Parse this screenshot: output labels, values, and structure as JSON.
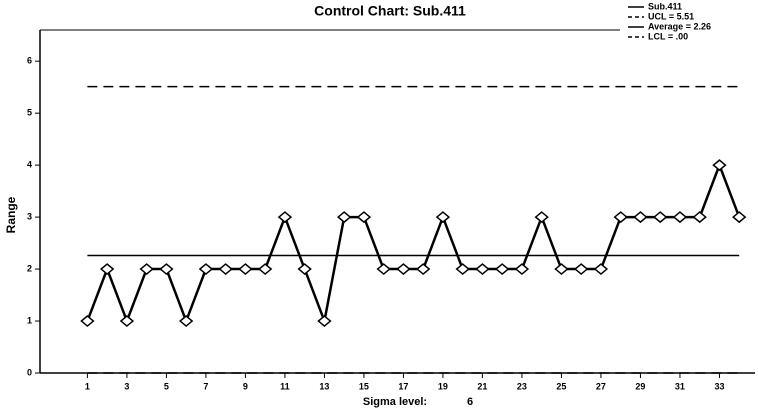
{
  "chart_data": {
    "type": "line",
    "title": "Control Chart: Sub.411",
    "ylabel": "Range",
    "sigma_label": "Sigma level:",
    "sigma_value": 6,
    "x": [
      1,
      2,
      3,
      4,
      5,
      6,
      7,
      8,
      9,
      10,
      11,
      12,
      13,
      14,
      15,
      16,
      17,
      18,
      19,
      20,
      21,
      22,
      23,
      24,
      25,
      26,
      27,
      28,
      29,
      30,
      31,
      32,
      33,
      34
    ],
    "series": [
      {
        "name": "Sub.411",
        "color": "#000000",
        "values": [
          1,
          2,
          1,
          2,
          2,
          1,
          2,
          2,
          2,
          2,
          3,
          2,
          1,
          3,
          3,
          2,
          2,
          2,
          3,
          2,
          2,
          2,
          2,
          3,
          2,
          2,
          2,
          3,
          3,
          3,
          3,
          3,
          4,
          3
        ]
      }
    ],
    "limits": [
      {
        "name": "UCL = 5.51",
        "value": 5.51,
        "dash": true
      },
      {
        "name": "Average = 2.26",
        "value": 2.26,
        "dash": false
      },
      {
        "name": "LCL = .00",
        "value": 0,
        "dash": true
      }
    ],
    "xlim": [
      -1.4,
      34.8
    ],
    "xticks": [
      1,
      3,
      5,
      7,
      9,
      11,
      13,
      15,
      17,
      19,
      21,
      23,
      25,
      27,
      29,
      31,
      33
    ],
    "ylim": [
      0,
      6.6
    ],
    "yticks": [
      0,
      1,
      2,
      3,
      4,
      5,
      6
    ]
  }
}
